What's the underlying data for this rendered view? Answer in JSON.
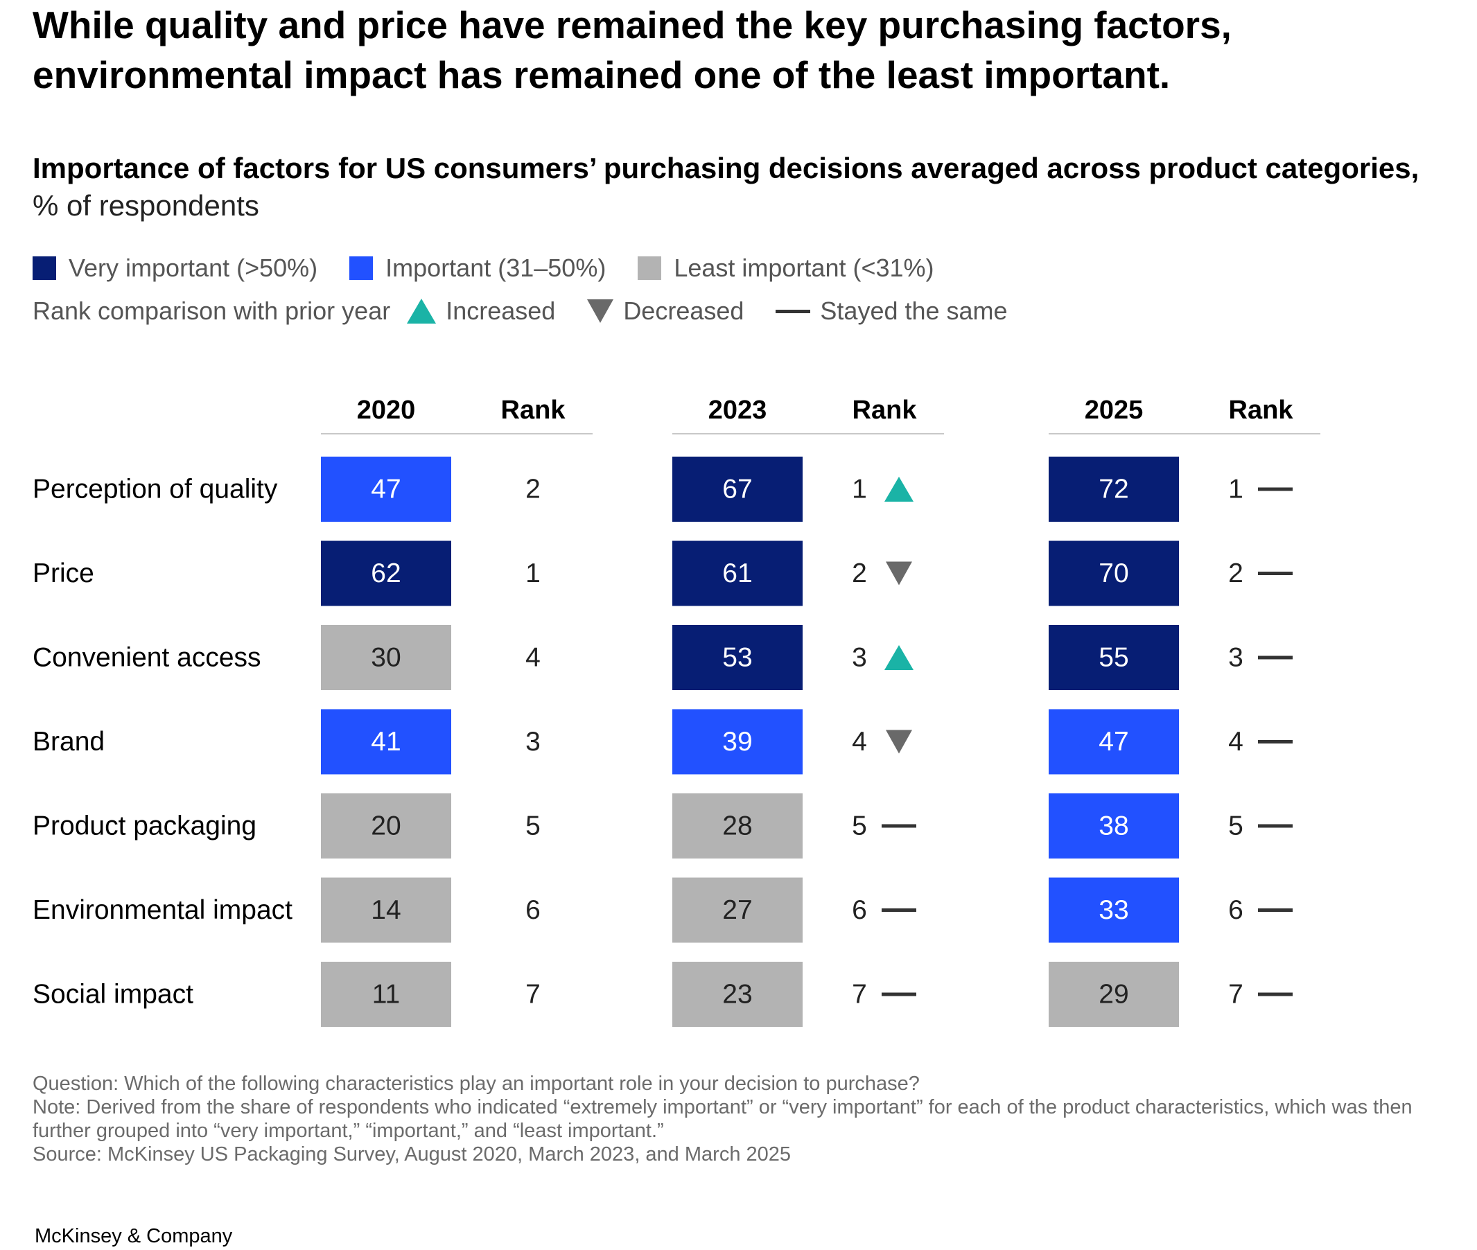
{
  "headline": "While quality and price have remained the key purchasing factors, environmental impact has remained one of the least important.",
  "subtitle": {
    "text": "Importance of factors for US consumers’ purchasing decisions averaged across product categories,",
    "unit": "% of respondents"
  },
  "legend": {
    "categories": [
      {
        "label": "Very important (>50%)",
        "color": "#071e74"
      },
      {
        "label": "Important (31–50%)",
        "color": "#2251ff"
      },
      {
        "label": "Least important (<31%)",
        "color": "#b3b3b3"
      }
    ],
    "rank_title": "Rank comparison with prior year",
    "rank_items": [
      {
        "label": "Increased",
        "icon": "triangle-up-icon",
        "color": "#1ab3a6"
      },
      {
        "label": "Decreased",
        "icon": "triangle-down-icon",
        "color": "#696969"
      },
      {
        "label": "Stayed the same",
        "icon": "dash-icon",
        "color": "#333333"
      }
    ]
  },
  "chart_data": {
    "type": "table",
    "rank_header": "Rank",
    "factors": [
      "Perception of quality",
      "Price",
      "Convenient access",
      "Brand",
      "Product packaging",
      "Environmental impact",
      "Social impact"
    ],
    "years": [
      {
        "year": "2020",
        "values": [
          47,
          62,
          30,
          41,
          20,
          14,
          11
        ],
        "ranks": [
          2,
          1,
          4,
          3,
          5,
          6,
          7
        ],
        "changes": [
          null,
          null,
          null,
          null,
          null,
          null,
          null
        ]
      },
      {
        "year": "2023",
        "values": [
          67,
          61,
          53,
          39,
          28,
          27,
          23
        ],
        "ranks": [
          1,
          2,
          3,
          4,
          5,
          6,
          7
        ],
        "changes": [
          "increased",
          "decreased",
          "increased",
          "decreased",
          "same",
          "same",
          "same"
        ]
      },
      {
        "year": "2025",
        "values": [
          72,
          70,
          55,
          47,
          38,
          33,
          29
        ],
        "ranks": [
          1,
          2,
          3,
          4,
          5,
          6,
          7
        ],
        "changes": [
          "same",
          "same",
          "same",
          "same",
          "same",
          "same",
          "same"
        ]
      }
    ],
    "thresholds": {
      "very_important_min": 51,
      "important_min": 31
    },
    "colors": {
      "very_important": "#071e74",
      "important": "#2251ff",
      "least_important": "#b3b3b3",
      "increased": "#1ab3a6",
      "decreased": "#696969",
      "same": "#333333"
    }
  },
  "footnotes": {
    "question": "Question: Which of the following characteristics play an important role in your decision to purchase?",
    "note": "Note: Derived from the share of respondents who indicated “extremely important” or “very important” for each of the product characteristics, which was then further grouped into “very important,” “important,” and “least important.”",
    "source": "Source: McKinsey US Packaging Survey, August 2020, March 2023, and March 2025"
  },
  "brand": "McKinsey & Company"
}
